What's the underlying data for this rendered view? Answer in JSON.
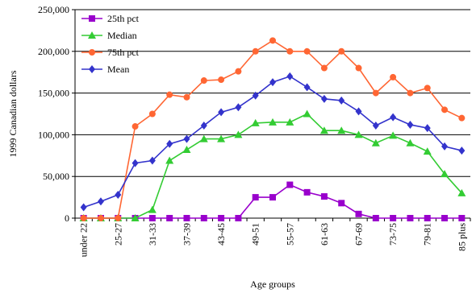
{
  "chart_data": {
    "type": "line",
    "xlabel": "Age groups",
    "ylabel": "1999 Canadian dollars",
    "ylim": [
      0,
      250000
    ],
    "yticks": [
      0,
      50000,
      100000,
      150000,
      200000,
      250000
    ],
    "ytick_labels": [
      "0",
      "50,000",
      "100,000",
      "150,000",
      "200,000",
      "250,000"
    ],
    "grid": "horizontal",
    "legend_placement": "top-left",
    "categories": [
      "under 22",
      "22-24",
      "25-27",
      "28-30",
      "31-33",
      "34-36",
      "37-39",
      "40-42",
      "43-45",
      "46-48",
      "49-51",
      "52-54",
      "55-57",
      "58-60",
      "61-63",
      "64-66",
      "67-69",
      "70-72",
      "73-75",
      "76-78",
      "79-81",
      "82-84",
      "85 plus"
    ],
    "visible_tick_labels": [
      "under 22",
      "25-27",
      "31-33",
      "37-39",
      "43-45",
      "49-51",
      "55-57",
      "61-63",
      "67-69",
      "73-75",
      "79-81",
      "85 plus"
    ],
    "series": [
      {
        "name": "25th pct",
        "color": "#9900cc",
        "marker": "square",
        "values": [
          0,
          0,
          0,
          0,
          0,
          0,
          0,
          0,
          0,
          0,
          25000,
          25000,
          40000,
          31000,
          26000,
          18000,
          5000,
          0,
          0,
          0,
          0,
          0,
          0
        ]
      },
      {
        "name": "Median",
        "color": "#33cc33",
        "marker": "triangle",
        "values": [
          0,
          0,
          0,
          0,
          10000,
          69000,
          82000,
          95000,
          95000,
          100000,
          114000,
          115000,
          115000,
          125000,
          105000,
          105000,
          100000,
          90000,
          99000,
          90000,
          80000,
          53000,
          30000
        ]
      },
      {
        "name": "75th pct",
        "color": "#ff6633",
        "marker": "circle",
        "values": [
          0,
          0,
          0,
          110000,
          125000,
          148000,
          145000,
          165000,
          166000,
          176000,
          200000,
          213000,
          200000,
          200000,
          180000,
          200000,
          180000,
          150000,
          169000,
          150000,
          156000,
          130000,
          120000
        ]
      },
      {
        "name": "Mean",
        "color": "#3333cc",
        "marker": "diamond",
        "values": [
          13000,
          20000,
          28000,
          66000,
          69000,
          89000,
          95000,
          111000,
          127000,
          133000,
          147000,
          163000,
          170000,
          157000,
          143000,
          141000,
          128000,
          111000,
          121000,
          112000,
          108000,
          86000,
          81000
        ]
      }
    ]
  }
}
